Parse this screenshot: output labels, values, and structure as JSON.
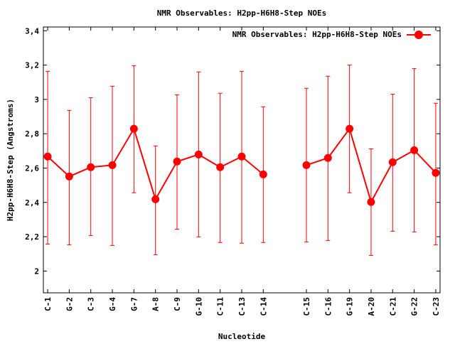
{
  "chart_data": {
    "type": "line",
    "title": "NMR Observables: H2pp-H6H8-Step NOEs",
    "xlabel": "Nucleotide",
    "ylabel": "H2pp-H6H8-Step (Angstroms)",
    "ylim": [
      1.873,
      3.422
    ],
    "yticks": [
      2,
      2.2,
      2.4,
      2.6,
      2.8,
      3,
      3.2,
      3.4
    ],
    "ytick_labels": [
      "2",
      "2,2",
      "2,4",
      "2,6",
      "2,8",
      "3",
      "3,2",
      "3,4"
    ],
    "grid": false,
    "legend": {
      "position": "top-right",
      "entries": [
        "NMR Observables: H2pp-H6H8-Step NOEs"
      ]
    },
    "color": "#ff0000",
    "categories": [
      "C-1",
      "G-2",
      "C-3",
      "G-4",
      "G-7",
      "A-8",
      "C-9",
      "G-10",
      "C-11",
      "C-13",
      "C-14",
      "C-15",
      "C-16",
      "G-19",
      "A-20",
      "C-21",
      "G-22",
      "C-23"
    ],
    "x": [
      0,
      1,
      2,
      3,
      4,
      5,
      6,
      7,
      8,
      9,
      10,
      12,
      13,
      14,
      15,
      16,
      17,
      18
    ],
    "xlim": [
      -0.2,
      18.2
    ],
    "series": [
      {
        "name": "NMR Observables: H2pp-H6H8-Step NOEs",
        "values": [
          2.667,
          2.551,
          2.605,
          2.617,
          2.829,
          2.418,
          2.638,
          2.679,
          2.605,
          2.667,
          2.563,
          2.617,
          2.659,
          2.829,
          2.402,
          2.634,
          2.704,
          2.572
        ],
        "err_high": [
          3.164,
          2.936,
          3.01,
          3.077,
          3.197,
          2.729,
          3.027,
          3.16,
          3.036,
          3.164,
          2.957,
          3.065,
          3.135,
          3.2,
          2.712,
          3.031,
          3.18,
          2.978
        ],
        "err_low": [
          2.157,
          2.153,
          2.207,
          2.149,
          2.456,
          2.095,
          2.244,
          2.199,
          2.166,
          2.162,
          2.166,
          2.17,
          2.178,
          2.456,
          2.091,
          2.232,
          2.228,
          2.153
        ],
        "segments": [
          [
            0,
            10
          ],
          [
            11,
            17
          ]
        ]
      }
    ]
  }
}
